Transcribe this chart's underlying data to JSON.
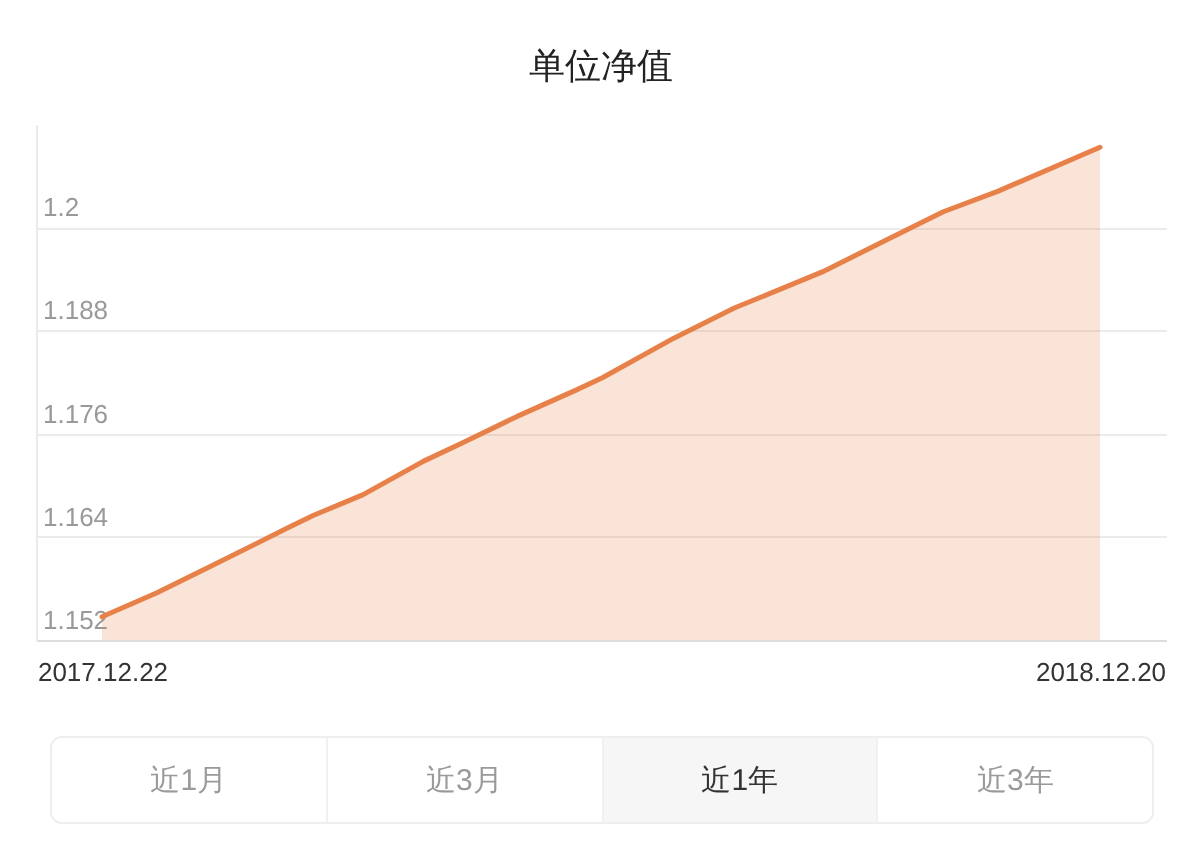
{
  "chart_data": {
    "type": "area",
    "title": "单位净值",
    "x": [
      "2017-12-22",
      "2018-01-11",
      "2018-01-30",
      "2018-02-28",
      "2018-03-09",
      "2018-03-27",
      "2018-04-18",
      "2018-05-02",
      "2018-05-22",
      "2018-06-12",
      "2018-06-22",
      "2018-07-18",
      "2018-08-09",
      "2018-09-10",
      "2018-10-02",
      "2018-10-24",
      "2018-11-13",
      "2018-12-20"
    ],
    "values": [
      1.1547,
      1.1575,
      1.1605,
      1.1651,
      1.1665,
      1.1689,
      1.1728,
      1.1749,
      1.178,
      1.181,
      1.1825,
      1.1871,
      1.1906,
      1.1948,
      1.1983,
      1.2018,
      1.2042,
      1.2093
    ],
    "color": "#e8804a",
    "xlim": [
      "2017-11-28",
      "2019-01-13"
    ],
    "xticks": [
      {
        "value": "2017-12-22",
        "label": "2017.12.22"
      },
      {
        "value": "2018-12-20",
        "label": "2018.12.20"
      }
    ],
    "ylim": [
      1.152,
      1.212
    ],
    "yticks": [
      1.152,
      1.164,
      1.176,
      1.188,
      1.2
    ],
    "grid": "y",
    "annotations": [
      "近1月",
      "近3月",
      "近1年",
      "近3年"
    ]
  }
}
